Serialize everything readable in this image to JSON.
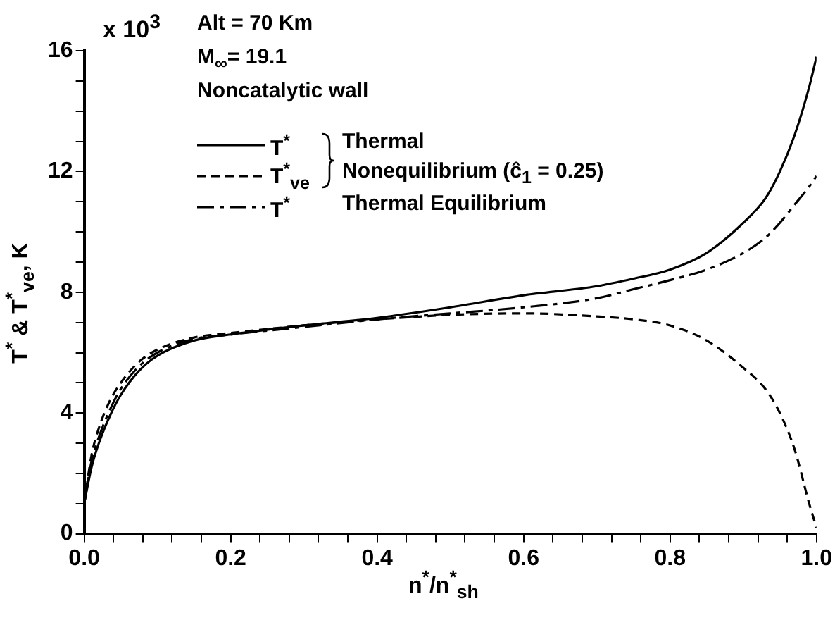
{
  "chart_data": {
    "type": "line",
    "xlabel": "n$^{*}$/n$^{*}$$_{sh}$",
    "ylabel": "T$^{*}$ & T$^{*}$$_{ve}$, K",
    "x": [
      0,
      0.01,
      0.02,
      0.035,
      0.05,
      0.075,
      0.1,
      0.15,
      0.2,
      0.3,
      0.4,
      0.5,
      0.6,
      0.7,
      0.75,
      0.8,
      0.85,
      0.9,
      0.93,
      0.95,
      0.97,
      0.99,
      1.0
    ],
    "series": [
      {
        "name": "T$^{*}$",
        "color": "#000000",
        "line_style": "solid",
        "values": [
          1.0,
          2.2,
          3.0,
          3.9,
          4.6,
          5.4,
          5.9,
          6.4,
          6.6,
          6.9,
          7.15,
          7.5,
          7.9,
          8.2,
          8.45,
          8.75,
          9.3,
          10.3,
          11.1,
          12.0,
          13.2,
          14.8,
          15.8
        ]
      },
      {
        "name": "T$^{*}$$_{ve}$",
        "color": "#000000",
        "line_style": "dashed",
        "values": [
          1.0,
          2.6,
          3.5,
          4.4,
          5.0,
          5.7,
          6.1,
          6.5,
          6.65,
          6.9,
          7.1,
          7.25,
          7.3,
          7.2,
          7.1,
          6.9,
          6.4,
          5.5,
          4.8,
          4.0,
          2.8,
          1.0,
          0.2
        ]
      },
      {
        "name": "T$^{*}$",
        "color": "#000000",
        "line_style": "dashdot",
        "values": [
          1.0,
          2.4,
          3.2,
          4.1,
          4.8,
          5.55,
          6.0,
          6.45,
          6.6,
          6.85,
          7.1,
          7.3,
          7.5,
          7.8,
          8.1,
          8.4,
          8.75,
          9.3,
          9.8,
          10.3,
          10.9,
          11.5,
          11.85
        ]
      }
    ],
    "xlim": [
      0,
      1
    ],
    "ylim": [
      0,
      16
    ],
    "xticks": [
      {
        "value": 0,
        "label": "0.0"
      },
      {
        "value": 0.04,
        "label": null
      },
      {
        "value": 0.08,
        "label": null
      },
      {
        "value": 0.12,
        "label": null
      },
      {
        "value": 0.16,
        "label": null
      },
      {
        "value": 0.2,
        "label": "0.2"
      },
      {
        "value": 0.24,
        "label": null
      },
      {
        "value": 0.28,
        "label": null
      },
      {
        "value": 0.32,
        "label": null
      },
      {
        "value": 0.36,
        "label": null
      },
      {
        "value": 0.4,
        "label": "0.4"
      },
      {
        "value": 0.44,
        "label": null
      },
      {
        "value": 0.48,
        "label": null
      },
      {
        "value": 0.52,
        "label": null
      },
      {
        "value": 0.56,
        "label": null
      },
      {
        "value": 0.6,
        "label": "0.6"
      },
      {
        "value": 0.64,
        "label": null
      },
      {
        "value": 0.68,
        "label": null
      },
      {
        "value": 0.72,
        "label": null
      },
      {
        "value": 0.76,
        "label": null
      },
      {
        "value": 0.8,
        "label": "0.8"
      },
      {
        "value": 0.84,
        "label": null
      },
      {
        "value": 0.88,
        "label": null
      },
      {
        "value": 0.92,
        "label": null
      },
      {
        "value": 0.96,
        "label": null
      },
      {
        "value": 1,
        "label": "1.0"
      }
    ],
    "yticks": [
      0,
      {
        "value": 1,
        "label": null
      },
      {
        "value": 2,
        "label": null
      },
      {
        "value": 3,
        "label": null
      },
      4,
      {
        "value": 5,
        "label": null
      },
      {
        "value": 6,
        "label": null
      },
      {
        "value": 7,
        "label": null
      },
      8,
      {
        "value": 9,
        "label": null
      },
      {
        "value": 10,
        "label": null
      },
      {
        "value": 11,
        "label": null
      },
      12,
      {
        "value": 13,
        "label": null
      },
      {
        "value": 14,
        "label": null
      },
      {
        "value": 15,
        "label": null
      },
      16
    ],
    "grid": false,
    "legend": "top left",
    "marker": "none",
    "annotations": [
      "x 10$^{3}$",
      "Alt = 70 Km",
      "M$_{∞}$= 19.1",
      "Noncatalytic wall",
      "Thermal",
      "Nonequilibrium (ĉ$_{1}$ = 0.25)",
      "Thermal Equilibrium"
    ]
  }
}
